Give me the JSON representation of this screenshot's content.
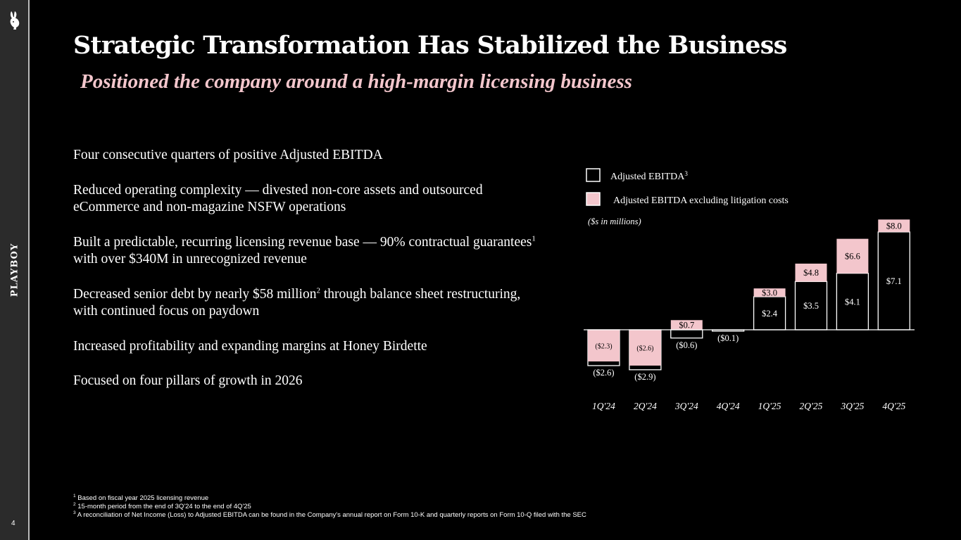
{
  "sidebar": {
    "brand": "PLAYBOY",
    "page_number": "4",
    "logo_icon": "bunny-logo-icon"
  },
  "header": {
    "title": "Strategic Transformation Has Stabilized the Business",
    "subtitle": "Positioned the company around a high-margin licensing business"
  },
  "bullets": [
    {
      "text": "Four consecutive quarters of positive Adjusted EBITDA"
    },
    {
      "text": "Reduced operating complexity — divested non-core assets and outsourced eCommerce and non-magazine NSFW operations"
    },
    {
      "pre": "Built a predictable, recurring licensing revenue base — 90% contractual guarantees",
      "sup": "1",
      "post": " with over $340M in unrecognized revenue"
    },
    {
      "pre": "Decreased senior debt by nearly $58 million",
      "sup": "2",
      "post": " through balance sheet restructuring, with continued focus on paydown"
    },
    {
      "text": "Increased profitability and expanding margins at Honey Birdette"
    },
    {
      "text": "Focused on four pillars of growth in 2026"
    }
  ],
  "chart_data": {
    "type": "bar",
    "categories": [
      "1Q'24",
      "2Q'24",
      "3Q'24",
      "4Q'24",
      "1Q'25",
      "2Q'25",
      "3Q'25",
      "4Q'25"
    ],
    "series": [
      {
        "name": "Adjusted EBITDA",
        "name_sup": "3",
        "color": "#000000",
        "values": [
          -2.6,
          -2.9,
          -0.6,
          -0.1,
          2.4,
          3.5,
          4.1,
          7.1
        ],
        "labels": [
          "($2.6)",
          "($2.9)",
          "($0.6)",
          "($0.1)",
          "$2.4",
          "$3.5",
          "$4.1",
          "$7.1"
        ]
      },
      {
        "name": "Adjusted EBITDA excluding litigation costs",
        "color": "#f3c6cc",
        "values": [
          -2.3,
          -2.6,
          0.7,
          null,
          3.0,
          4.8,
          6.6,
          8.0
        ],
        "labels": [
          "($2.3)",
          "($2.6)",
          "$0.7",
          "",
          "$3.0",
          "$4.8",
          "$6.6",
          "$8.0"
        ]
      }
    ],
    "units_note": "($s in millions)",
    "legend_position": "top-left",
    "grid": false
  },
  "footnotes": [
    {
      "sup": "1",
      "text": "Based on fiscal year 2025 licensing revenue"
    },
    {
      "sup": "2",
      "text": "15-month period from the end of 3Q'24 to the end of 4Q'25"
    },
    {
      "sup": "3",
      "text": "A reconciliation of Net Income (Loss) to Adjusted EBITDA can be found in the Company's annual report on Form 10-K and quarterly reports on Form 10-Q filed with the SEC"
    }
  ]
}
